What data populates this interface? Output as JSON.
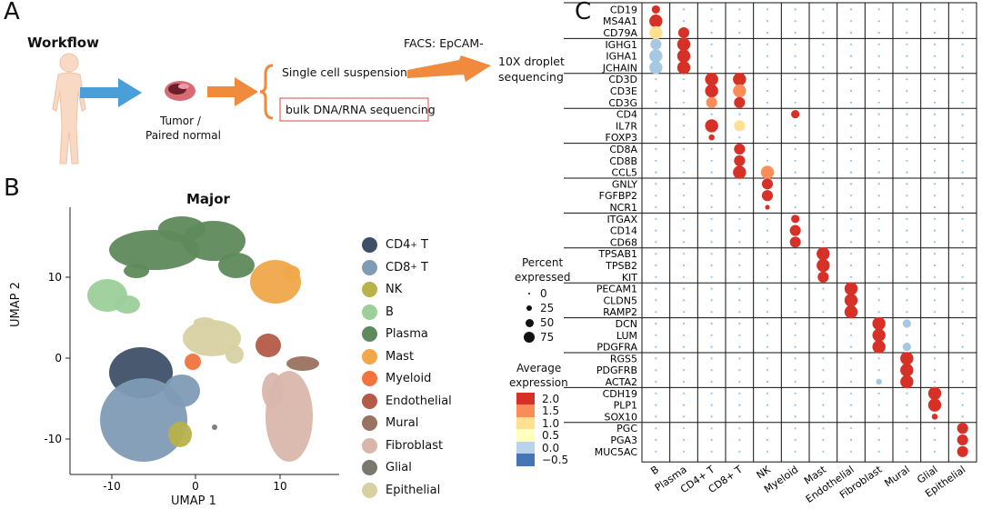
{
  "panel_a": {
    "letter": "A",
    "workflow_label": "Workflow",
    "tumor_label_line1": "Tumor /",
    "tumor_label_line2": "Paired normal",
    "single_cell_label": "Single cell suspension",
    "bulk_label": "bulk DNA/RNA sequencing",
    "facs_label": "FACS: EpCAM-",
    "droplet_line1": "10X droplet",
    "droplet_line2": "sequencing",
    "colors": {
      "arrow_blue": "#4a9fd8",
      "arrow_orange": "#f08a3c",
      "body": "#f8d9c4",
      "bulk_border": "#e06666"
    }
  },
  "panel_b": {
    "letter": "B",
    "title": "Major",
    "xlabel": "UMAP 1",
    "ylabel": "UMAP 2",
    "xticks": [
      "-10",
      "0",
      "10"
    ],
    "yticks": [
      "10",
      "0",
      "-10"
    ],
    "legend": [
      {
        "name": "CD4",
        "sup": "+",
        "suffix": " T",
        "color": "#3e5068"
      },
      {
        "name": "CD8",
        "sup": "+",
        "suffix": " T",
        "color": "#7f9bb5"
      },
      {
        "name": "NK",
        "sup": "",
        "suffix": "",
        "color": "#b7b24a"
      },
      {
        "name": "B",
        "sup": "",
        "suffix": "",
        "color": "#9ccf9a"
      },
      {
        "name": "Plasma",
        "sup": "",
        "suffix": "",
        "color": "#5e8a5c"
      },
      {
        "name": "Mast",
        "sup": "",
        "suffix": "",
        "color": "#f0a84a"
      },
      {
        "name": "Myeloid",
        "sup": "",
        "suffix": "",
        "color": "#f0743c"
      },
      {
        "name": "Endothelial",
        "sup": "",
        "suffix": "",
        "color": "#b45a48"
      },
      {
        "name": "Mural",
        "sup": "",
        "suffix": "",
        "color": "#9a7260"
      },
      {
        "name": "Fibroblast",
        "sup": "",
        "suffix": "",
        "color": "#d9b6ac"
      },
      {
        "name": "Glial",
        "sup": "",
        "suffix": "",
        "color": "#7a786e"
      },
      {
        "name": "Epithelial",
        "sup": "",
        "suffix": "",
        "color": "#d7d1a2"
      }
    ],
    "percent_title_line1": "Percent",
    "percent_title_line2": "expressed",
    "percent_levels": [
      "0",
      "25",
      "50",
      "75"
    ],
    "avg_title_line1": "Average",
    "avg_title_line2": "expression",
    "avg_ticks": [
      "2.0",
      "1.5",
      "1.0",
      "0.5",
      "0.0",
      "−0.5"
    ],
    "avg_colors": [
      "#d73027",
      "#fc8d59",
      "#fee090",
      "#ffffbf",
      "#b8d4ea",
      "#4575b4"
    ]
  },
  "panel_c": {
    "letter": "C",
    "chart_data": {
      "type": "dotplot",
      "columns": [
        "B",
        "Plasma",
        "CD4+ T",
        "CD8+ T",
        "NK",
        "Myeloid",
        "Mast",
        "Endothelial",
        "Fibroblast",
        "Mural",
        "Glial",
        "Epithelial"
      ],
      "gene_groups": [
        [
          "CD19",
          "MS4A1",
          "CD79A"
        ],
        [
          "IGHG1",
          "IGHA1",
          "JCHAIN"
        ],
        [
          "CD3D",
          "CD3E",
          "CD3G"
        ],
        [
          "CD4",
          "IL7R",
          "FOXP3"
        ],
        [
          "CD8A",
          "CD8B",
          "CCL5"
        ],
        [
          "GNLY",
          "FGFBP2",
          "NCR1"
        ],
        [
          "ITGAX",
          "CD14",
          "CD68"
        ],
        [
          "TPSAB1",
          "TPSB2",
          "KIT"
        ],
        [
          "PECAM1",
          "CLDN5",
          "RAMP2"
        ],
        [
          "DCN",
          "LUM",
          "PDGFRA"
        ],
        [
          "RGS5",
          "PDGFRB",
          "ACTA2"
        ],
        [
          "CDH19",
          "PLP1",
          "SOX10"
        ],
        [
          "PGC",
          "PGA3",
          "MUC5AC"
        ]
      ],
      "highlights": [
        {
          "gene": "CD19",
          "col": "B",
          "pct": 25,
          "expr": 2.0
        },
        {
          "gene": "MS4A1",
          "col": "B",
          "pct": 75,
          "expr": 2.0
        },
        {
          "gene": "CD79A",
          "col": "B",
          "pct": 75,
          "expr": 1.0
        },
        {
          "gene": "CD79A",
          "col": "Plasma",
          "pct": 50,
          "expr": 2.0
        },
        {
          "gene": "IGHG1",
          "col": "B",
          "pct": 50,
          "expr": 0.0
        },
        {
          "gene": "IGHG1",
          "col": "Plasma",
          "pct": 75,
          "expr": 2.0
        },
        {
          "gene": "IGHA1",
          "col": "B",
          "pct": 75,
          "expr": 0.0
        },
        {
          "gene": "IGHA1",
          "col": "Plasma",
          "pct": 75,
          "expr": 2.0
        },
        {
          "gene": "JCHAIN",
          "col": "B",
          "pct": 75,
          "expr": 0.0
        },
        {
          "gene": "JCHAIN",
          "col": "Plasma",
          "pct": 75,
          "expr": 2.0
        },
        {
          "gene": "CD3D",
          "col": "CD4+ T",
          "pct": 75,
          "expr": 2.0
        },
        {
          "gene": "CD3D",
          "col": "CD8+ T",
          "pct": 75,
          "expr": 2.0
        },
        {
          "gene": "CD3E",
          "col": "CD4+ T",
          "pct": 75,
          "expr": 2.0
        },
        {
          "gene": "CD3E",
          "col": "CD8+ T",
          "pct": 75,
          "expr": 1.5
        },
        {
          "gene": "CD3G",
          "col": "CD4+ T",
          "pct": 50,
          "expr": 1.5
        },
        {
          "gene": "CD3G",
          "col": "CD8+ T",
          "pct": 50,
          "expr": 2.0
        },
        {
          "gene": "CD4",
          "col": "Myeloid",
          "pct": 25,
          "expr": 2.0
        },
        {
          "gene": "IL7R",
          "col": "CD4+ T",
          "pct": 75,
          "expr": 2.0
        },
        {
          "gene": "IL7R",
          "col": "CD8+ T",
          "pct": 50,
          "expr": 1.0
        },
        {
          "gene": "FOXP3",
          "col": "CD4+ T",
          "pct": 10,
          "expr": 2.0
        },
        {
          "gene": "CD8A",
          "col": "CD8+ T",
          "pct": 50,
          "expr": 2.0
        },
        {
          "gene": "CD8B",
          "col": "CD8+ T",
          "pct": 50,
          "expr": 2.0
        },
        {
          "gene": "CCL5",
          "col": "CD8+ T",
          "pct": 75,
          "expr": 2.0
        },
        {
          "gene": "CCL5",
          "col": "NK",
          "pct": 75,
          "expr": 1.5
        },
        {
          "gene": "GNLY",
          "col": "NK",
          "pct": 50,
          "expr": 2.0
        },
        {
          "gene": "FGFBP2",
          "col": "NK",
          "pct": 50,
          "expr": 2.0
        },
        {
          "gene": "NCR1",
          "col": "NK",
          "pct": 5,
          "expr": 2.0
        },
        {
          "gene": "ITGAX",
          "col": "Myeloid",
          "pct": 25,
          "expr": 2.0
        },
        {
          "gene": "CD14",
          "col": "Myeloid",
          "pct": 50,
          "expr": 2.0
        },
        {
          "gene": "CD68",
          "col": "Myeloid",
          "pct": 50,
          "expr": 2.0
        },
        {
          "gene": "TPSAB1",
          "col": "Mast",
          "pct": 75,
          "expr": 2.0
        },
        {
          "gene": "TPSB2",
          "col": "Mast",
          "pct": 75,
          "expr": 2.0
        },
        {
          "gene": "KIT",
          "col": "Mast",
          "pct": 50,
          "expr": 2.0
        },
        {
          "gene": "PECAM1",
          "col": "Endothelial",
          "pct": 75,
          "expr": 2.0
        },
        {
          "gene": "CLDN5",
          "col": "Endothelial",
          "pct": 75,
          "expr": 2.0
        },
        {
          "gene": "RAMP2",
          "col": "Endothelial",
          "pct": 75,
          "expr": 2.0
        },
        {
          "gene": "DCN",
          "col": "Fibroblast",
          "pct": 75,
          "expr": 2.0
        },
        {
          "gene": "DCN",
          "col": "Mural",
          "pct": 25,
          "expr": 0.0
        },
        {
          "gene": "LUM",
          "col": "Fibroblast",
          "pct": 75,
          "expr": 2.0
        },
        {
          "gene": "PDGFRA",
          "col": "Fibroblast",
          "pct": 75,
          "expr": 2.0
        },
        {
          "gene": "PDGFRA",
          "col": "Mural",
          "pct": 25,
          "expr": 0.0
        },
        {
          "gene": "RGS5",
          "col": "Mural",
          "pct": 75,
          "expr": 2.0
        },
        {
          "gene": "PDGFRB",
          "col": "Mural",
          "pct": 75,
          "expr": 2.0
        },
        {
          "gene": "ACTA2",
          "col": "Mural",
          "pct": 75,
          "expr": 2.0
        },
        {
          "gene": "ACTA2",
          "col": "Fibroblast",
          "pct": 10,
          "expr": 0.0
        },
        {
          "gene": "CDH19",
          "col": "Glial",
          "pct": 75,
          "expr": 2.0
        },
        {
          "gene": "PLP1",
          "col": "Glial",
          "pct": 75,
          "expr": 2.0
        },
        {
          "gene": "SOX10",
          "col": "Glial",
          "pct": 10,
          "expr": 2.0
        },
        {
          "gene": "PGC",
          "col": "Epithelial",
          "pct": 50,
          "expr": 2.0
        },
        {
          "gene": "PGA3",
          "col": "Epithelial",
          "pct": 50,
          "expr": 2.0
        },
        {
          "gene": "MUC5AC",
          "col": "Epithelial",
          "pct": 50,
          "expr": 2.0
        }
      ]
    }
  }
}
